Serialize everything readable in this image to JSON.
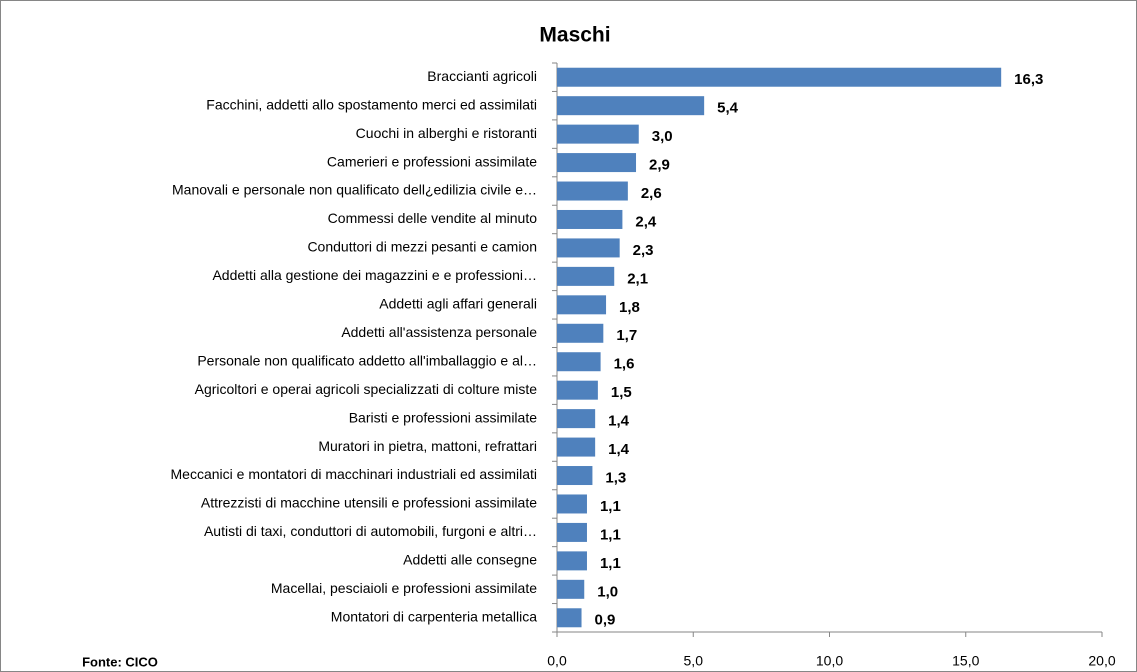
{
  "chart_data": {
    "type": "bar",
    "orientation": "horizontal",
    "title": "Maschi",
    "source": "Fonte: CICO",
    "categories": [
      "Braccianti agricoli",
      "Facchini, addetti allo spostamento merci ed assimilati",
      "Cuochi in alberghi e ristoranti",
      "Camerieri e professioni assimilate",
      "Manovali e personale non qualificato dell¿edilizia civile e…",
      "Commessi delle vendite al minuto",
      "Conduttori di mezzi pesanti e camion",
      "Addetti alla gestione dei magazzini e e professioni…",
      "Addetti agli affari generali",
      "Addetti all'assistenza personale",
      "Personale non qualificato addetto all'imballaggio e al…",
      "Agricoltori e operai agricoli specializzati di colture miste",
      "Baristi e professioni assimilate",
      "Muratori in pietra, mattoni, refrattari",
      "Meccanici e montatori di macchinari industriali ed assimilati",
      "Attrezzisti di macchine utensili e professioni assimilate",
      "Autisti di taxi, conduttori di automobili, furgoni e altri…",
      "Addetti alle consegne",
      "Macellai, pesciaioli e professioni assimilate",
      "Montatori di carpenteria metallica"
    ],
    "values": [
      16.3,
      5.4,
      3.0,
      2.9,
      2.6,
      2.4,
      2.3,
      2.1,
      1.8,
      1.7,
      1.6,
      1.5,
      1.4,
      1.4,
      1.3,
      1.1,
      1.1,
      1.1,
      1.0,
      0.9
    ],
    "value_labels": [
      "16,3",
      "5,4",
      "3,0",
      "2,9",
      "2,6",
      "2,4",
      "2,3",
      "2,1",
      "1,8",
      "1,7",
      "1,6",
      "1,5",
      "1,4",
      "1,4",
      "1,3",
      "1,1",
      "1,1",
      "1,1",
      "1,0",
      "0,9"
    ],
    "color": "#4f81bd",
    "xlim": [
      0,
      20
    ],
    "xticks": [
      {
        "value": 0,
        "label": "0,0"
      },
      {
        "value": 5,
        "label": "5,0"
      },
      {
        "value": 10,
        "label": "10,0"
      },
      {
        "value": 15,
        "label": "15,0"
      },
      {
        "value": 20,
        "label": "20,0"
      }
    ],
    "grid": false
  }
}
